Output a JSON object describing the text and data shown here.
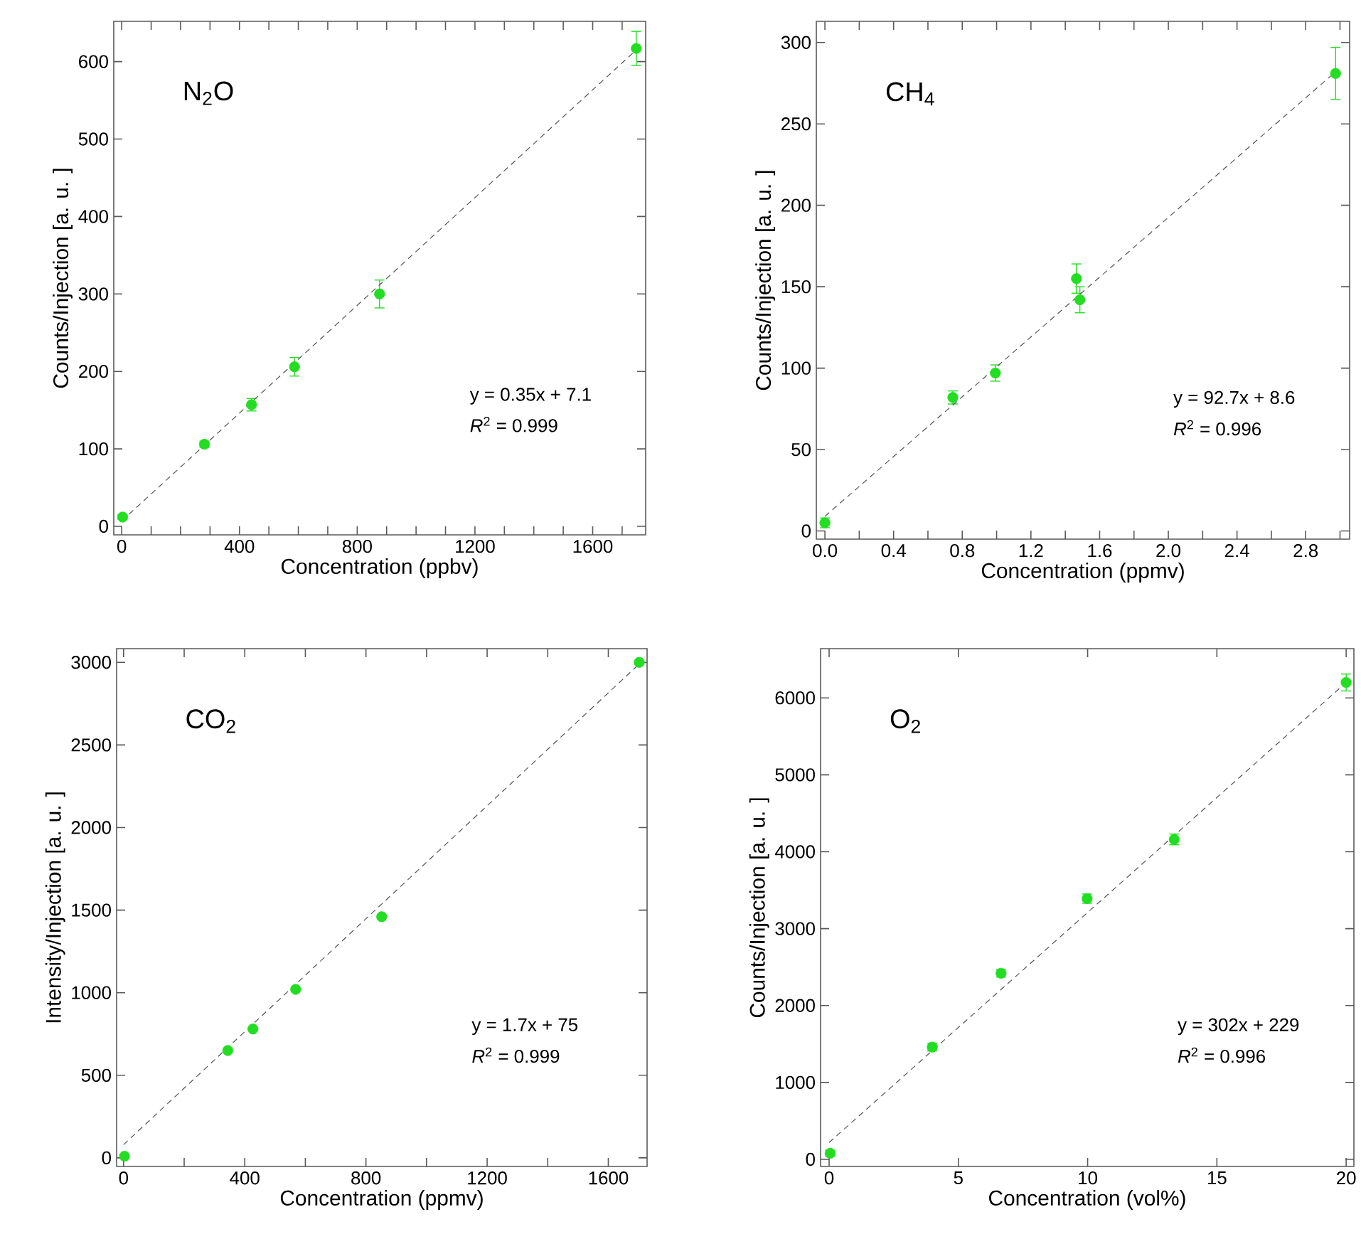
{
  "chart_data": [
    {
      "type": "scatter",
      "title": "N$_{2}$O",
      "xlabel": "Concentration (ppbv)",
      "ylabel": "Counts/Injection [a. u. ]",
      "xlim": [
        -27,
        1780
      ],
      "ylim": [
        -11,
        652
      ],
      "xticks": [
        0,
        {
          "value": 100,
          "label": null
        },
        {
          "value": 200,
          "label": null
        },
        {
          "value": 300,
          "label": null
        },
        400,
        {
          "value": 500,
          "label": null
        },
        {
          "value": 600,
          "label": null
        },
        {
          "value": 700,
          "label": null
        },
        800,
        {
          "value": 900,
          "label": null
        },
        {
          "value": 1000,
          "label": null
        },
        {
          "value": 1100,
          "label": null
        },
        1200,
        {
          "value": 1300,
          "label": null
        },
        {
          "value": 1400,
          "label": null
        },
        {
          "value": 1500,
          "label": null
        },
        1600,
        {
          "value": 1700,
          "label": null
        }
      ],
      "yticks": [
        0,
        100,
        200,
        300,
        400,
        500,
        600
      ],
      "annotations": [
        "y = 0.35x + 7.1",
        "*R*$^{2}$ = 0.999"
      ],
      "series": [
        {
          "type": "scatter",
          "color": "#22dd22",
          "marker": "circle",
          "x": [
            3,
            281,
            441,
            587,
            876,
            1748
          ],
          "values": [
            12,
            106,
            157,
            206,
            300,
            617
          ],
          "errors": [
            3,
            4,
            8,
            12,
            18,
            22
          ]
        },
        {
          "type": "line",
          "color": "#555555",
          "marker": "none",
          "line_style": "dashed",
          "x": [
            0,
            1748
          ],
          "values": [
            7,
            615
          ]
        }
      ]
    },
    {
      "type": "scatter",
      "title": "CH$_{4}$",
      "xlabel": "Concentration (ppmv)",
      "ylabel": "Counts/Injection [a. u. ]",
      "xlim": [
        -0.05,
        3.056
      ],
      "ylim": [
        -5,
        313
      ],
      "xticks": [
        {
          "value": 0,
          "label": "0.0"
        },
        {
          "value": 0.2,
          "label": null
        },
        0.4,
        {
          "value": 0.6,
          "label": null
        },
        0.8,
        {
          "value": 1.0,
          "label": null
        },
        1.2,
        {
          "value": 1.4,
          "label": null
        },
        1.6,
        {
          "value": 1.8,
          "label": null
        },
        {
          "value": 2,
          "label": "2.0"
        },
        {
          "value": 2.2,
          "label": null
        },
        2.4,
        {
          "value": 2.6,
          "label": null
        },
        2.8,
        {
          "value": 3.0,
          "label": null
        }
      ],
      "yticks": [
        0,
        50,
        100,
        150,
        200,
        250,
        300
      ],
      "annotations": [
        "y = 92.7x + 8.6",
        "*R*$^{2}$ = 0.996"
      ],
      "series": [
        {
          "type": "scatter",
          "color": "#22dd22",
          "marker": "circle",
          "x": [
            0.0,
            0.745,
            0.993,
            1.465,
            1.485,
            2.974
          ],
          "values": [
            5,
            82,
            97,
            155,
            142,
            281
          ],
          "errors": [
            3,
            4,
            5,
            9,
            8,
            16
          ]
        },
        {
          "type": "line",
          "color": "#555555",
          "marker": "none",
          "line_style": "dashed",
          "x": [
            0,
            2.974
          ],
          "values": [
            9,
            282
          ]
        }
      ]
    },
    {
      "type": "scatter",
      "title": "CO$_{2}$",
      "xlabel": "Concentration (ppmv)",
      "ylabel": "Intensity/Injection  [a. u. ]",
      "xlim": [
        -23,
        1728
      ],
      "ylim": [
        -52,
        3083
      ],
      "xticks": [
        0,
        {
          "value": 200,
          "label": null
        },
        400,
        {
          "value": 600,
          "label": null
        },
        800,
        {
          "value": 1000,
          "label": null
        },
        1200,
        {
          "value": 1400,
          "label": null
        },
        1600
      ],
      "yticks": [
        0,
        500,
        1000,
        1500,
        2000,
        2500,
        3000
      ],
      "annotations": [
        "y = 1.7x + 75",
        "*R*$^{2}$ = 0.999"
      ],
      "series": [
        {
          "type": "scatter",
          "color": "#22dd22",
          "marker": "circle",
          "x": [
            3,
            344,
            427,
            568,
            852,
            1702
          ],
          "values": [
            10,
            650,
            780,
            1020,
            1460,
            3000
          ]
        },
        {
          "type": "line",
          "color": "#555555",
          "marker": "none",
          "line_style": "dashed",
          "x": [
            0,
            1702
          ],
          "values": [
            80,
            2990
          ]
        }
      ]
    },
    {
      "type": "scatter",
      "title": "O$_{2}$",
      "xlabel": "Concentration (vol%)",
      "ylabel": "Counts/Injection [a. u. ]",
      "xlim": [
        -0.33,
        20.3
      ],
      "ylim": [
        -92,
        6640
      ],
      "xticks": [
        0,
        5,
        10,
        15,
        20
      ],
      "yticks": [
        0,
        1000,
        2000,
        3000,
        4000,
        5000,
        6000
      ],
      "annotations": [
        "y = 302x + 229",
        "*R*$^{2}$ = 0.996"
      ],
      "series": [
        {
          "type": "scatter",
          "color": "#22dd22",
          "marker": "circle",
          "x": [
            0.04,
            3.99,
            6.65,
            9.98,
            13.35,
            20
          ],
          "values": [
            80,
            1460,
            2420,
            3390,
            4160,
            6200
          ],
          "errors": [
            40,
            50,
            50,
            60,
            70,
            110
          ]
        },
        {
          "type": "line",
          "color": "#555555",
          "marker": "none",
          "line_style": "dashed",
          "x": [
            0,
            20
          ],
          "values": [
            220,
            6200
          ]
        }
      ]
    }
  ]
}
